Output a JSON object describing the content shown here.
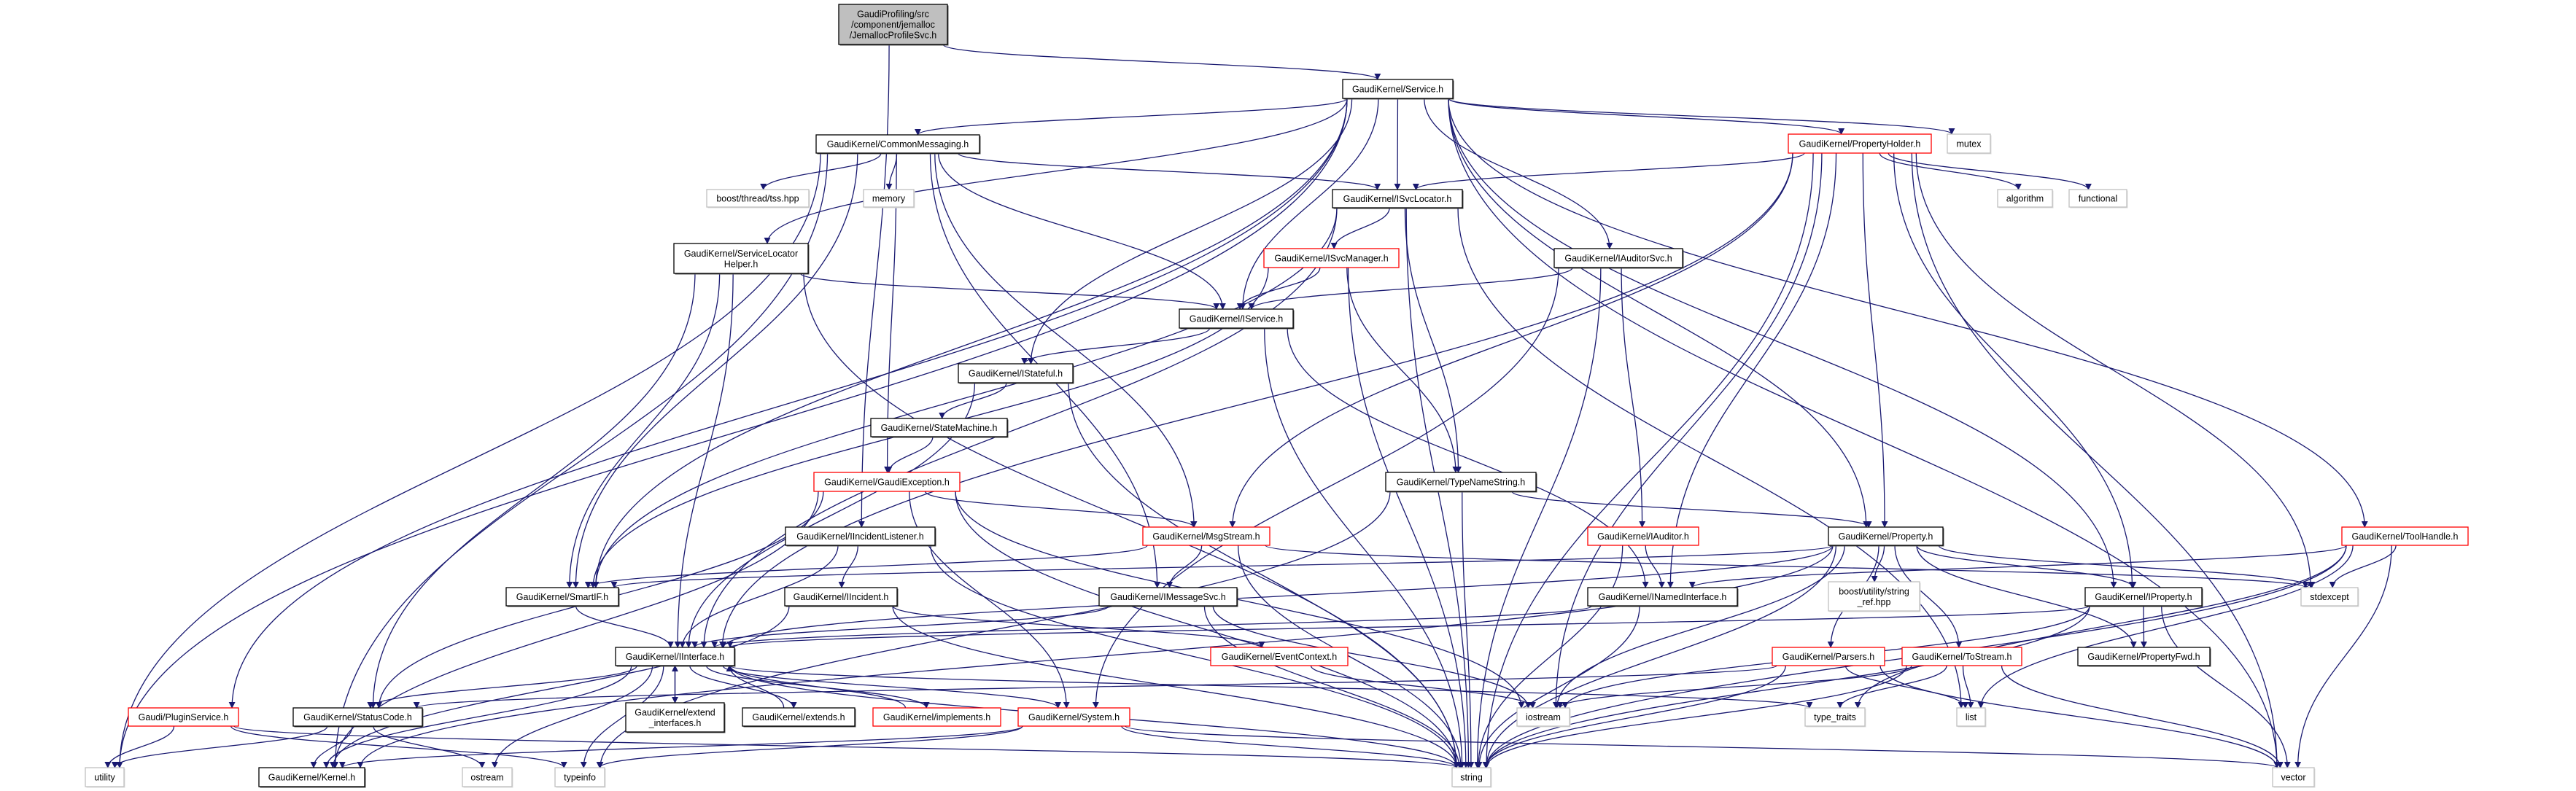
{
  "graph": {
    "colors": {
      "edge": "#191970",
      "root_fill": "#bfbfbf",
      "normal_border": "#000000",
      "incomplete_border": "#ff0000",
      "external_border": "#bfbfbf"
    },
    "nodes": [
      {
        "lines": [
          "GaudiProfiling/src",
          "/component/jemalloc",
          "/JemallocProfileSvc.h"
        ],
        "style": "root"
      },
      {
        "lines": [
          "GaudiKernel/Service.h"
        ],
        "style": "normal"
      },
      {
        "lines": [
          "GaudiKernel/CommonMessaging.h"
        ],
        "style": "normal"
      },
      {
        "lines": [
          "boost/thread/tss.hpp"
        ],
        "style": "external"
      },
      {
        "lines": [
          "memory"
        ],
        "style": "external"
      },
      {
        "lines": [
          "GaudiKernel/ISvcLocator.h"
        ],
        "style": "normal"
      },
      {
        "lines": [
          "GaudiKernel/PropertyHolder.h"
        ],
        "style": "incomplete"
      },
      {
        "lines": [
          "mutex"
        ],
        "style": "external"
      },
      {
        "lines": [
          "algorithm"
        ],
        "style": "external"
      },
      {
        "lines": [
          "functional"
        ],
        "style": "external"
      },
      {
        "lines": [
          "GaudiKernel/ServiceLocator",
          "Helper.h"
        ],
        "style": "normal"
      },
      {
        "lines": [
          "GaudiKernel/ISvcManager.h"
        ],
        "style": "incomplete"
      },
      {
        "lines": [
          "GaudiKernel/IAuditorSvc.h"
        ],
        "style": "normal"
      },
      {
        "lines": [
          "GaudiKernel/IService.h"
        ],
        "style": "normal"
      },
      {
        "lines": [
          "GaudiKernel/IStateful.h"
        ],
        "style": "normal"
      },
      {
        "lines": [
          "GaudiKernel/StateMachine.h"
        ],
        "style": "normal"
      },
      {
        "lines": [
          "GaudiKernel/GaudiException.h"
        ],
        "style": "incomplete"
      },
      {
        "lines": [
          "GaudiKernel/TypeNameString.h"
        ],
        "style": "normal"
      },
      {
        "lines": [
          "GaudiKernel/IIncidentListener.h"
        ],
        "style": "normal"
      },
      {
        "lines": [
          "GaudiKernel/MsgStream.h"
        ],
        "style": "incomplete"
      },
      {
        "lines": [
          "GaudiKernel/IAuditor.h"
        ],
        "style": "incomplete"
      },
      {
        "lines": [
          "GaudiKernel/Property.h"
        ],
        "style": "normal"
      },
      {
        "lines": [
          "GaudiKernel/ToolHandle.h"
        ],
        "style": "incomplete"
      },
      {
        "lines": [
          "GaudiKernel/SmartIF.h"
        ],
        "style": "normal"
      },
      {
        "lines": [
          "GaudiKernel/IIncident.h"
        ],
        "style": "normal"
      },
      {
        "lines": [
          "GaudiKernel/IMessageSvc.h"
        ],
        "style": "normal"
      },
      {
        "lines": [
          "GaudiKernel/INamedInterface.h"
        ],
        "style": "normal"
      },
      {
        "lines": [
          "boost/utility/string",
          "_ref.hpp"
        ],
        "style": "external"
      },
      {
        "lines": [
          "GaudiKernel/IProperty.h"
        ],
        "style": "normal"
      },
      {
        "lines": [
          "stdexcept"
        ],
        "style": "external"
      },
      {
        "lines": [
          "GaudiKernel/IInterface.h"
        ],
        "style": "normal"
      },
      {
        "lines": [
          "GaudiKernel/EventContext.h"
        ],
        "style": "incomplete"
      },
      {
        "lines": [
          "GaudiKernel/Parsers.h"
        ],
        "style": "incomplete"
      },
      {
        "lines": [
          "GaudiKernel/ToStream.h"
        ],
        "style": "incomplete"
      },
      {
        "lines": [
          "GaudiKernel/PropertyFwd.h"
        ],
        "style": "normal"
      },
      {
        "lines": [
          "Gaudi/PluginService.h"
        ],
        "style": "incomplete"
      },
      {
        "lines": [
          "GaudiKernel/StatusCode.h"
        ],
        "style": "normal"
      },
      {
        "lines": [
          "GaudiKernel/extend",
          "_interfaces.h"
        ],
        "style": "normal"
      },
      {
        "lines": [
          "GaudiKernel/extends.h"
        ],
        "style": "normal"
      },
      {
        "lines": [
          "GaudiKernel/implements.h"
        ],
        "style": "incomplete"
      },
      {
        "lines": [
          "GaudiKernel/System.h"
        ],
        "style": "incomplete"
      },
      {
        "lines": [
          "iostream"
        ],
        "style": "external"
      },
      {
        "lines": [
          "type_traits"
        ],
        "style": "external"
      },
      {
        "lines": [
          "list"
        ],
        "style": "external"
      },
      {
        "lines": [
          "utility"
        ],
        "style": "external"
      },
      {
        "lines": [
          "GaudiKernel/Kernel.h"
        ],
        "style": "normal"
      },
      {
        "lines": [
          "ostream"
        ],
        "style": "external"
      },
      {
        "lines": [
          "typeinfo"
        ],
        "style": "external"
      },
      {
        "lines": [
          "string"
        ],
        "style": "external"
      },
      {
        "lines": [
          "vector"
        ],
        "style": "external"
      }
    ],
    "edges": [
      [
        "GaudiProfiling/src/component/jemalloc/JemallocProfileSvc.h",
        "GaudiKernel/Service.h"
      ],
      [
        "GaudiProfiling/src/component/jemalloc/JemallocProfileSvc.h",
        "GaudiKernel/IIncidentListener.h"
      ],
      [
        "GaudiKernel/Service.h",
        "GaudiKernel/CommonMessaging.h"
      ],
      [
        "GaudiKernel/Service.h",
        "GaudiKernel/ISvcLocator.h"
      ],
      [
        "GaudiKernel/Service.h",
        "GaudiKernel/PropertyHolder.h"
      ],
      [
        "GaudiKernel/Service.h",
        "mutex"
      ],
      [
        "GaudiKernel/Service.h",
        "GaudiKernel/ServiceLocatorHelper.h"
      ],
      [
        "GaudiKernel/Service.h",
        "GaudiKernel/IAuditorSvc.h"
      ],
      [
        "GaudiKernel/Service.h",
        "GaudiKernel/IService.h"
      ],
      [
        "GaudiKernel/Service.h",
        "GaudiKernel/IStateful.h"
      ],
      [
        "GaudiKernel/Service.h",
        "GaudiKernel/Property.h"
      ],
      [
        "GaudiKernel/Service.h",
        "GaudiKernel/IProperty.h"
      ],
      [
        "GaudiKernel/Service.h",
        "GaudiKernel/ToolHandle.h"
      ],
      [
        "GaudiKernel/Service.h",
        "GaudiKernel/SmartIF.h"
      ],
      [
        "GaudiKernel/Service.h",
        "Gaudi/PluginService.h"
      ],
      [
        "GaudiKernel/Service.h",
        "utility"
      ],
      [
        "GaudiKernel/Service.h",
        "vector"
      ],
      [
        "GaudiKernel/CommonMessaging.h",
        "boost/thread/tss.hpp"
      ],
      [
        "GaudiKernel/CommonMessaging.h",
        "memory"
      ],
      [
        "GaudiKernel/CommonMessaging.h",
        "GaudiKernel/ISvcLocator.h"
      ],
      [
        "GaudiKernel/CommonMessaging.h",
        "GaudiKernel/IService.h"
      ],
      [
        "GaudiKernel/CommonMessaging.h",
        "GaudiKernel/GaudiException.h"
      ],
      [
        "GaudiKernel/CommonMessaging.h",
        "GaudiKernel/MsgStream.h"
      ],
      [
        "GaudiKernel/CommonMessaging.h",
        "GaudiKernel/IMessageSvc.h"
      ],
      [
        "GaudiKernel/CommonMessaging.h",
        "GaudiKernel/SmartIF.h"
      ],
      [
        "GaudiKernel/CommonMessaging.h",
        "utility"
      ],
      [
        "GaudiKernel/CommonMessaging.h",
        "GaudiKernel/Kernel.h"
      ],
      [
        "GaudiKernel/ISvcLocator.h",
        "GaudiKernel/ISvcManager.h"
      ],
      [
        "GaudiKernel/ISvcLocator.h",
        "GaudiKernel/TypeNameString.h"
      ],
      [
        "GaudiKernel/ISvcLocator.h",
        "GaudiKernel/IInterface.h"
      ],
      [
        "GaudiKernel/ISvcLocator.h",
        "GaudiKernel/SmartIF.h"
      ],
      [
        "GaudiKernel/ISvcLocator.h",
        "string"
      ],
      [
        "GaudiKernel/ISvcLocator.h",
        "list"
      ],
      [
        "GaudiKernel/PropertyHolder.h",
        "GaudiKernel/ISvcLocator.h"
      ],
      [
        "GaudiKernel/PropertyHolder.h",
        "algorithm"
      ],
      [
        "GaudiKernel/PropertyHolder.h",
        "functional"
      ],
      [
        "GaudiKernel/PropertyHolder.h",
        "GaudiKernel/Property.h"
      ],
      [
        "GaudiKernel/PropertyHolder.h",
        "GaudiKernel/IProperty.h"
      ],
      [
        "GaudiKernel/PropertyHolder.h",
        "GaudiKernel/INamedInterface.h"
      ],
      [
        "GaudiKernel/PropertyHolder.h",
        "GaudiKernel/MsgStream.h"
      ],
      [
        "GaudiKernel/PropertyHolder.h",
        "GaudiKernel/IInterface.h"
      ],
      [
        "GaudiKernel/PropertyHolder.h",
        "iostream"
      ],
      [
        "GaudiKernel/PropertyHolder.h",
        "stdexcept"
      ],
      [
        "GaudiKernel/PropertyHolder.h",
        "string"
      ],
      [
        "GaudiKernel/PropertyHolder.h",
        "vector"
      ],
      [
        "GaudiKernel/ServiceLocatorHelper.h",
        "GaudiKernel/IService.h"
      ],
      [
        "GaudiKernel/ServiceLocatorHelper.h",
        "GaudiKernel/SmartIF.h"
      ],
      [
        "GaudiKernel/ServiceLocatorHelper.h",
        "GaudiKernel/StatusCode.h"
      ],
      [
        "GaudiKernel/ServiceLocatorHelper.h",
        "GaudiKernel/IInterface.h"
      ],
      [
        "GaudiKernel/ServiceLocatorHelper.h",
        "string"
      ],
      [
        "GaudiKernel/ISvcManager.h",
        "GaudiKernel/IService.h"
      ],
      [
        "GaudiKernel/ISvcManager.h",
        "GaudiKernel/TypeNameString.h"
      ],
      [
        "GaudiKernel/ISvcManager.h",
        "GaudiKernel/SmartIF.h"
      ],
      [
        "GaudiKernel/ISvcManager.h",
        "string"
      ],
      [
        "GaudiKernel/IAuditorSvc.h",
        "GaudiKernel/IService.h"
      ],
      [
        "GaudiKernel/IAuditorSvc.h",
        "GaudiKernel/IAuditor.h"
      ],
      [
        "GaudiKernel/IAuditorSvc.h",
        "GaudiKernel/System.h"
      ],
      [
        "GaudiKernel/IAuditorSvc.h",
        "string"
      ],
      [
        "GaudiKernel/IService.h",
        "GaudiKernel/IStateful.h"
      ],
      [
        "GaudiKernel/IService.h",
        "GaudiKernel/INamedInterface.h"
      ],
      [
        "GaudiKernel/IService.h",
        "string"
      ],
      [
        "GaudiKernel/IStateful.h",
        "GaudiKernel/StateMachine.h"
      ],
      [
        "GaudiKernel/IStateful.h",
        "GaudiKernel/IInterface.h"
      ],
      [
        "GaudiKernel/IStateful.h",
        "string"
      ],
      [
        "GaudiKernel/StateMachine.h",
        "GaudiKernel/GaudiException.h"
      ],
      [
        "GaudiKernel/GaudiException.h",
        "GaudiKernel/MsgStream.h"
      ],
      [
        "GaudiKernel/GaudiException.h",
        "GaudiKernel/StatusCode.h"
      ],
      [
        "GaudiKernel/GaudiException.h",
        "GaudiKernel/System.h"
      ],
      [
        "GaudiKernel/GaudiException.h",
        "GaudiKernel/Kernel.h"
      ],
      [
        "GaudiKernel/GaudiException.h",
        "iostream"
      ],
      [
        "GaudiKernel/GaudiException.h",
        "string"
      ],
      [
        "GaudiKernel/TypeNameString.h",
        "GaudiKernel/Property.h"
      ],
      [
        "GaudiKernel/TypeNameString.h",
        "typeinfo"
      ],
      [
        "GaudiKernel/TypeNameString.h",
        "string"
      ],
      [
        "GaudiKernel/IIncidentListener.h",
        "GaudiKernel/IInterface.h"
      ],
      [
        "GaudiKernel/IIncidentListener.h",
        "GaudiKernel/IIncident.h"
      ],
      [
        "GaudiKernel/IIncidentListener.h",
        "string"
      ],
      [
        "GaudiKernel/MsgStream.h",
        "GaudiKernel/IMessageSvc.h"
      ],
      [
        "GaudiKernel/MsgStream.h",
        "GaudiKernel/SmartIF.h"
      ],
      [
        "GaudiKernel/MsgStream.h",
        "stdexcept"
      ],
      [
        "GaudiKernel/MsgStream.h",
        "string"
      ],
      [
        "GaudiKernel/IAuditor.h",
        "GaudiKernel/INamedInterface.h"
      ],
      [
        "GaudiKernel/IAuditor.h",
        "string"
      ],
      [
        "GaudiKernel/Property.h",
        "boost/utility/string_ref.hpp"
      ],
      [
        "GaudiKernel/Property.h",
        "GaudiKernel/IProperty.h"
      ],
      [
        "GaudiKernel/Property.h",
        "GaudiKernel/PropertyFwd.h"
      ],
      [
        "GaudiKernel/Property.h",
        "GaudiKernel/Parsers.h"
      ],
      [
        "GaudiKernel/Property.h",
        "GaudiKernel/ToStream.h"
      ],
      [
        "GaudiKernel/Property.h",
        "GaudiKernel/SmartIF.h"
      ],
      [
        "GaudiKernel/Property.h",
        "GaudiKernel/IInterface.h"
      ],
      [
        "GaudiKernel/Property.h",
        "GaudiKernel/Kernel.h"
      ],
      [
        "GaudiKernel/Property.h",
        "stdexcept"
      ],
      [
        "GaudiKernel/Property.h",
        "iostream"
      ],
      [
        "GaudiKernel/Property.h",
        "string"
      ],
      [
        "GaudiKernel/ToolHandle.h",
        "GaudiKernel/INamedInterface.h"
      ],
      [
        "GaudiKernel/ToolHandle.h",
        "stdexcept"
      ],
      [
        "GaudiKernel/ToolHandle.h",
        "list"
      ],
      [
        "GaudiKernel/ToolHandle.h",
        "type_traits"
      ],
      [
        "GaudiKernel/ToolHandle.h",
        "string"
      ],
      [
        "GaudiKernel/ToolHandle.h",
        "vector"
      ],
      [
        "GaudiKernel/SmartIF.h",
        "GaudiKernel/IInterface.h"
      ],
      [
        "GaudiKernel/IIncident.h",
        "GaudiKernel/EventContext.h"
      ],
      [
        "GaudiKernel/IIncident.h",
        "GaudiKernel/Kernel.h"
      ],
      [
        "GaudiKernel/IIncident.h",
        "string"
      ],
      [
        "GaudiKernel/IMessageSvc.h",
        "GaudiKernel/IInterface.h"
      ],
      [
        "GaudiKernel/IMessageSvc.h",
        "iostream"
      ],
      [
        "GaudiKernel/IMessageSvc.h",
        "string"
      ],
      [
        "GaudiKernel/INamedInterface.h",
        "GaudiKernel/IInterface.h"
      ],
      [
        "GaudiKernel/INamedInterface.h",
        "string"
      ],
      [
        "GaudiKernel/IProperty.h",
        "GaudiKernel/PropertyFwd.h"
      ],
      [
        "GaudiKernel/IProperty.h",
        "GaudiKernel/IInterface.h"
      ],
      [
        "GaudiKernel/IProperty.h",
        "iostream"
      ],
      [
        "GaudiKernel/IProperty.h",
        "string"
      ],
      [
        "GaudiKernel/IProperty.h",
        "vector"
      ],
      [
        "GaudiKernel/IInterface.h",
        "GaudiKernel/StatusCode.h"
      ],
      [
        "GaudiKernel/IInterface.h",
        "GaudiKernel/extend_interfaces.h"
      ],
      [
        "GaudiKernel/IInterface.h",
        "GaudiKernel/extends.h"
      ],
      [
        "GaudiKernel/IInterface.h",
        "GaudiKernel/implements.h"
      ],
      [
        "GaudiKernel/IInterface.h",
        "GaudiKernel/System.h"
      ],
      [
        "GaudiKernel/IInterface.h",
        "GaudiKernel/Kernel.h"
      ],
      [
        "GaudiKernel/IInterface.h",
        "ostream"
      ],
      [
        "GaudiKernel/IInterface.h",
        "typeinfo"
      ],
      [
        "GaudiKernel/IInterface.h",
        "type_traits"
      ],
      [
        "GaudiKernel/IInterface.h",
        "string"
      ],
      [
        "GaudiKernel/EventContext.h",
        "iostream"
      ],
      [
        "GaudiKernel/Parsers.h",
        "GaudiKernel/StatusCode.h"
      ],
      [
        "GaudiKernel/Parsers.h",
        "list"
      ],
      [
        "GaudiKernel/Parsers.h",
        "string"
      ],
      [
        "GaudiKernel/Parsers.h",
        "vector"
      ],
      [
        "GaudiKernel/ToStream.h",
        "type_traits"
      ],
      [
        "GaudiKernel/ToStream.h",
        "list"
      ],
      [
        "GaudiKernel/ToStream.h",
        "iostream"
      ],
      [
        "GaudiKernel/ToStream.h",
        "string"
      ],
      [
        "GaudiKernel/ToStream.h",
        "vector"
      ],
      [
        "GaudiKernel/extend_interfaces.h",
        "GaudiKernel/IInterface.h"
      ],
      [
        "GaudiKernel/extends.h",
        "GaudiKernel/IInterface.h"
      ],
      [
        "GaudiKernel/implements.h",
        "GaudiKernel/IInterface.h"
      ],
      [
        "Gaudi/PluginService.h",
        "utility"
      ],
      [
        "Gaudi/PluginService.h",
        "typeinfo"
      ],
      [
        "Gaudi/PluginService.h",
        "string"
      ],
      [
        "GaudiKernel/StatusCode.h",
        "utility"
      ],
      [
        "GaudiKernel/StatusCode.h",
        "GaudiKernel/Kernel.h"
      ],
      [
        "GaudiKernel/StatusCode.h",
        "ostream"
      ],
      [
        "GaudiKernel/System.h",
        "GaudiKernel/Kernel.h"
      ],
      [
        "GaudiKernel/System.h",
        "typeinfo"
      ],
      [
        "GaudiKernel/System.h",
        "string"
      ],
      [
        "GaudiKernel/System.h",
        "vector"
      ]
    ]
  }
}
